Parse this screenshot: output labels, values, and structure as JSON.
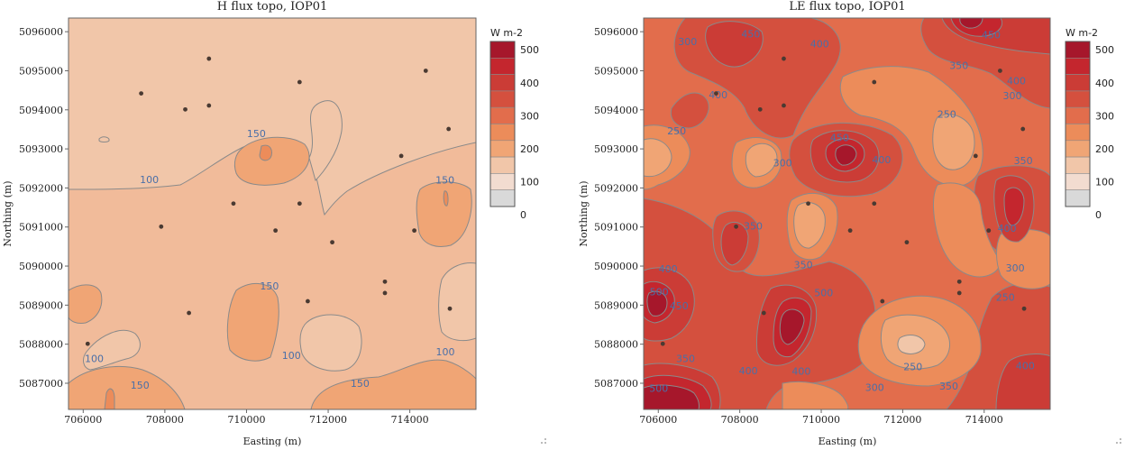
{
  "chart_data": [
    {
      "type": "contour",
      "title": "H flux topo, IOP01",
      "xlabel": "Easting (m)",
      "ylabel": "Northing (m)",
      "xticks": [
        "706000",
        "708000",
        "710000",
        "712000",
        "714000"
      ],
      "yticks": [
        "5087000",
        "5088000",
        "5089000",
        "5090000",
        "5091000",
        "5092000",
        "5093000",
        "5094000",
        "5095000",
        "5096000"
      ],
      "xlim": [
        705640,
        715620
      ],
      "ylim": [
        5086330,
        5096350
      ],
      "legend": {
        "title": "W m-2",
        "ticks": [
          "500",
          "400",
          "300",
          "200",
          "100",
          "0"
        ],
        "levels": [
          0,
          50,
          100,
          150,
          200,
          250,
          300,
          350,
          400,
          450,
          500
        ],
        "colors": [
          "#d9d9d9",
          "#f2dcd0",
          "#f1c6a9",
          "#f0a575",
          "#ec8c5a",
          "#e26d4c",
          "#d4503e",
          "#cb3c36",
          "#c4262e",
          "#a6172b"
        ]
      },
      "background_level": "100-150",
      "contour_labels": [
        {
          "text": "150",
          "x": 710240,
          "y": 5093390
        },
        {
          "text": "100",
          "x": 707620,
          "y": 5092220
        },
        {
          "text": "150",
          "x": 714860,
          "y": 5092210
        },
        {
          "text": "150",
          "x": 710560,
          "y": 5089490
        },
        {
          "text": "100",
          "x": 706270,
          "y": 5087640
        },
        {
          "text": "150",
          "x": 707390,
          "y": 5086950
        },
        {
          "text": "100",
          "x": 711100,
          "y": 5087710
        },
        {
          "text": "150",
          "x": 712780,
          "y": 5087000
        },
        {
          "text": "100",
          "x": 714870,
          "y": 5087810
        }
      ],
      "stations": [
        {
          "x": 709080,
          "y": 5095310
        },
        {
          "x": 714390,
          "y": 5095000
        },
        {
          "x": 711300,
          "y": 5094710
        },
        {
          "x": 707420,
          "y": 5094420
        },
        {
          "x": 708500,
          "y": 5094010
        },
        {
          "x": 709080,
          "y": 5094110
        },
        {
          "x": 714950,
          "y": 5093510
        },
        {
          "x": 713790,
          "y": 5092820
        },
        {
          "x": 709680,
          "y": 5091600
        },
        {
          "x": 711300,
          "y": 5091600
        },
        {
          "x": 707910,
          "y": 5091010
        },
        {
          "x": 710710,
          "y": 5090910
        },
        {
          "x": 714110,
          "y": 5090910
        },
        {
          "x": 712100,
          "y": 5090610
        },
        {
          "x": 713390,
          "y": 5089600
        },
        {
          "x": 713390,
          "y": 5089310
        },
        {
          "x": 711500,
          "y": 5089100
        },
        {
          "x": 708590,
          "y": 5088800
        },
        {
          "x": 714980,
          "y": 5088910
        },
        {
          "x": 706110,
          "y": 5088010
        }
      ]
    },
    {
      "type": "contour",
      "title": "LE flux topo, IOP01",
      "xlabel": "Easting (m)",
      "ylabel": "Northing (m)",
      "xticks": [
        "706000",
        "708000",
        "710000",
        "712000",
        "714000"
      ],
      "yticks": [
        "5087000",
        "5088000",
        "5089000",
        "5090000",
        "5091000",
        "5092000",
        "5093000",
        "5094000",
        "5095000",
        "5096000"
      ],
      "xlim": [
        705640,
        715620
      ],
      "ylim": [
        5086330,
        5096350
      ],
      "legend": {
        "title": "W m-2",
        "ticks": [
          "500",
          "400",
          "300",
          "200",
          "100",
          "0"
        ],
        "levels": [
          0,
          50,
          100,
          150,
          200,
          250,
          300,
          350,
          400,
          450,
          500
        ],
        "colors": [
          "#d9d9d9",
          "#f2dcd0",
          "#f1c6a9",
          "#f0a575",
          "#ec8c5a",
          "#e26d4c",
          "#d4503e",
          "#cb3c36",
          "#c4262e",
          "#a6172b"
        ]
      },
      "background_level": "300-350",
      "contour_labels": [
        {
          "text": "450",
          "x": 708270,
          "y": 5095950
        },
        {
          "text": "400",
          "x": 709960,
          "y": 5095690
        },
        {
          "text": "300",
          "x": 706720,
          "y": 5095750
        },
        {
          "text": "450",
          "x": 714170,
          "y": 5095920
        },
        {
          "text": "350",
          "x": 713380,
          "y": 5095140
        },
        {
          "text": "400",
          "x": 714790,
          "y": 5094750
        },
        {
          "text": "300",
          "x": 714690,
          "y": 5094370
        },
        {
          "text": "250",
          "x": 713080,
          "y": 5093890
        },
        {
          "text": "400",
          "x": 707470,
          "y": 5094390
        },
        {
          "text": "250",
          "x": 706450,
          "y": 5093460
        },
        {
          "text": "300",
          "x": 709050,
          "y": 5092650
        },
        {
          "text": "450",
          "x": 710450,
          "y": 5093290
        },
        {
          "text": "400",
          "x": 711480,
          "y": 5092720
        },
        {
          "text": "350",
          "x": 714960,
          "y": 5092700
        },
        {
          "text": "400",
          "x": 714560,
          "y": 5090970
        },
        {
          "text": "350",
          "x": 708330,
          "y": 5091030
        },
        {
          "text": "350",
          "x": 709560,
          "y": 5090040
        },
        {
          "text": "300",
          "x": 714760,
          "y": 5089960
        },
        {
          "text": "400",
          "x": 706240,
          "y": 5089930
        },
        {
          "text": "500",
          "x": 706020,
          "y": 5089340
        },
        {
          "text": "450",
          "x": 706510,
          "y": 5088980
        },
        {
          "text": "500",
          "x": 710060,
          "y": 5089320
        },
        {
          "text": "250",
          "x": 714520,
          "y": 5089200
        },
        {
          "text": "350",
          "x": 706670,
          "y": 5087640
        },
        {
          "text": "400",
          "x": 708210,
          "y": 5087320
        },
        {
          "text": "400",
          "x": 709510,
          "y": 5087310
        },
        {
          "text": "250",
          "x": 712250,
          "y": 5087430
        },
        {
          "text": "300",
          "x": 711310,
          "y": 5086900
        },
        {
          "text": "350",
          "x": 713130,
          "y": 5086930
        },
        {
          "text": "400",
          "x": 715010,
          "y": 5087450
        },
        {
          "text": "500",
          "x": 706010,
          "y": 5086870
        }
      ],
      "stations": [
        {
          "x": 709080,
          "y": 5095310
        },
        {
          "x": 714390,
          "y": 5095000
        },
        {
          "x": 711300,
          "y": 5094710
        },
        {
          "x": 707420,
          "y": 5094420
        },
        {
          "x": 708500,
          "y": 5094010
        },
        {
          "x": 709080,
          "y": 5094110
        },
        {
          "x": 714950,
          "y": 5093510
        },
        {
          "x": 713790,
          "y": 5092820
        },
        {
          "x": 709680,
          "y": 5091600
        },
        {
          "x": 711300,
          "y": 5091600
        },
        {
          "x": 707910,
          "y": 5091010
        },
        {
          "x": 710710,
          "y": 5090910
        },
        {
          "x": 714110,
          "y": 5090910
        },
        {
          "x": 712100,
          "y": 5090610
        },
        {
          "x": 713390,
          "y": 5089600
        },
        {
          "x": 713390,
          "y": 5089310
        },
        {
          "x": 711500,
          "y": 5089100
        },
        {
          "x": 708590,
          "y": 5088800
        },
        {
          "x": 714980,
          "y": 5088910
        },
        {
          "x": 706110,
          "y": 5088010
        }
      ]
    }
  ]
}
